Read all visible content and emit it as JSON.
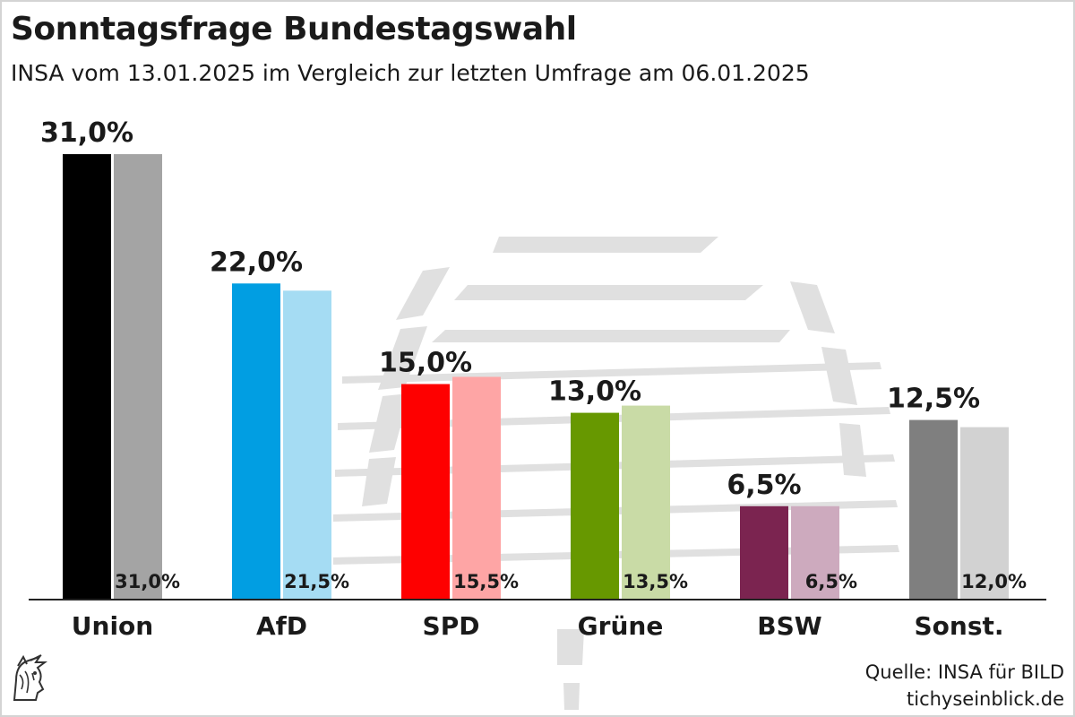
{
  "title": "Sonntagsfrage Bundestagswahl",
  "subtitle": "INSA vom 13.01.2025 im Vergleich zur letzten Umfrage am 06.01.2025",
  "source": {
    "line1": "Quelle: INSA für BILD",
    "line2": "tichyseinblick.de"
  },
  "logo": {
    "icon": "hermes-head-icon"
  },
  "watermark": {
    "icon": "reichstag-dome-icon",
    "color": "#e0e0e0"
  },
  "axis_color": "#222222",
  "chart_data": {
    "type": "bar",
    "categories": [
      "Union",
      "AfD",
      "SPD",
      "Grüne",
      "BSW",
      "Sonst."
    ],
    "series": [
      {
        "values": [
          31.0,
          22.0,
          15.0,
          13.0,
          6.5,
          12.5
        ],
        "labels": [
          "31,0%",
          "22,0%",
          "15,0%",
          "13,0%",
          "6,5%",
          "12,5%"
        ],
        "colors": [
          "#000000",
          "#019ee2",
          "#fe0000",
          "#679800",
          "#7b2450",
          "#7f7f7f"
        ]
      },
      {
        "values": [
          31.0,
          21.5,
          15.5,
          13.5,
          6.5,
          12.0
        ],
        "labels": [
          "31,0%",
          "21,5%",
          "15,5%",
          "13,5%",
          "6,5%",
          "12,0%"
        ],
        "colors": [
          "#a4a4a4",
          "#a5dcf3",
          "#fea5a5",
          "#c9dba6",
          "#cdaabe",
          "#d2d2d2"
        ]
      }
    ],
    "ylim": [
      0,
      31
    ],
    "grid": false,
    "legend": "none"
  }
}
